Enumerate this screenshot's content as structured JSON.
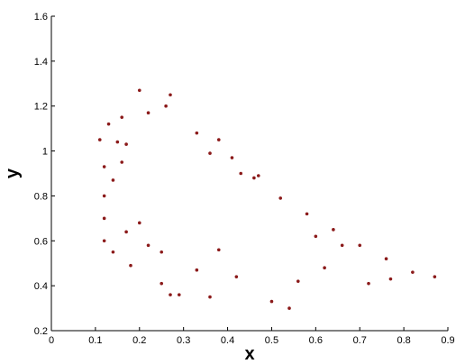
{
  "chart_data": {
    "type": "scatter",
    "title": "",
    "xlabel": "x",
    "ylabel": "y",
    "xlim": [
      0,
      0.9
    ],
    "ylim": [
      0.2,
      1.6
    ],
    "xticks": [
      "0",
      "0.1",
      "0.2",
      "0.3",
      "0.4",
      "0.5",
      "0.6",
      "0.7",
      "0.8",
      "0.9"
    ],
    "yticks": [
      "0.2",
      "0.4",
      "0.6",
      "0.8",
      "1",
      "1.2",
      "1.4",
      "1.6"
    ],
    "grid": false,
    "legend": "none",
    "marker_color": "#8b1a1a",
    "series": [
      {
        "values": [
          [
            0.87,
            0.44
          ],
          [
            0.82,
            0.46
          ],
          [
            0.76,
            0.52
          ],
          [
            0.7,
            0.58
          ],
          [
            0.64,
            0.65
          ],
          [
            0.58,
            0.72
          ],
          [
            0.52,
            0.79
          ],
          [
            0.46,
            0.88
          ],
          [
            0.41,
            0.97
          ],
          [
            0.38,
            1.05
          ],
          [
            0.33,
            1.08
          ],
          [
            0.26,
            1.2
          ],
          [
            0.2,
            1.27
          ],
          [
            0.27,
            1.25
          ],
          [
            0.22,
            1.17
          ],
          [
            0.16,
            1.15
          ],
          [
            0.13,
            1.12
          ],
          [
            0.11,
            1.05
          ],
          [
            0.12,
            0.93
          ],
          [
            0.14,
            0.87
          ],
          [
            0.16,
            0.95
          ],
          [
            0.17,
            1.03
          ],
          [
            0.15,
            1.04
          ],
          [
            0.12,
            0.8
          ],
          [
            0.12,
            0.7
          ],
          [
            0.12,
            0.6
          ],
          [
            0.14,
            0.55
          ],
          [
            0.18,
            0.49
          ],
          [
            0.22,
            0.58
          ],
          [
            0.25,
            0.55
          ],
          [
            0.2,
            0.68
          ],
          [
            0.17,
            0.64
          ],
          [
            0.25,
            0.41
          ],
          [
            0.27,
            0.36
          ],
          [
            0.36,
            0.35
          ],
          [
            0.33,
            0.47
          ],
          [
            0.38,
            0.56
          ],
          [
            0.42,
            0.44
          ],
          [
            0.5,
            0.33
          ],
          [
            0.54,
            0.3
          ],
          [
            0.56,
            0.42
          ],
          [
            0.62,
            0.48
          ],
          [
            0.6,
            0.62
          ],
          [
            0.66,
            0.58
          ],
          [
            0.72,
            0.41
          ],
          [
            0.77,
            0.43
          ],
          [
            0.43,
            0.9
          ],
          [
            0.36,
            0.99
          ],
          [
            0.47,
            0.89
          ],
          [
            0.29,
            0.36
          ]
        ]
      }
    ]
  }
}
